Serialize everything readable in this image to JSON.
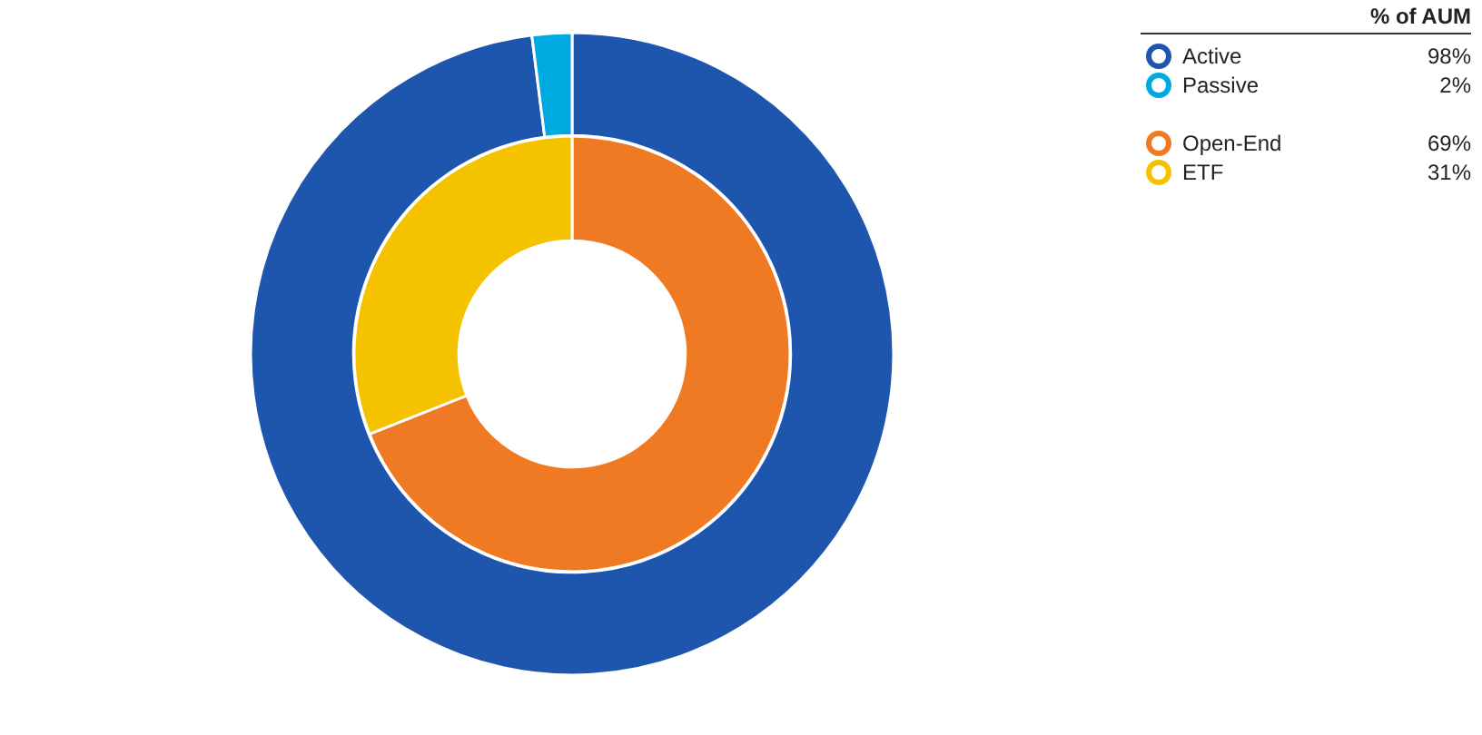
{
  "chart_data": [
    {
      "type": "donut",
      "legend_title": "% of AUM",
      "categories": [
        "Active",
        "Passive"
      ],
      "values": [
        98,
        2
      ],
      "colors": [
        "#1f56ad",
        "#00a9e0"
      ],
      "value_labels": [
        "98%",
        "2%"
      ],
      "legend": "top right"
    },
    {
      "type": "donut",
      "categories": [
        "Open-End",
        "ETF"
      ],
      "values": [
        69,
        31
      ],
      "colors": [
        "#f07923",
        "#f5c200"
      ],
      "value_labels": [
        "69%",
        "31%"
      ],
      "legend": "top right"
    }
  ]
}
